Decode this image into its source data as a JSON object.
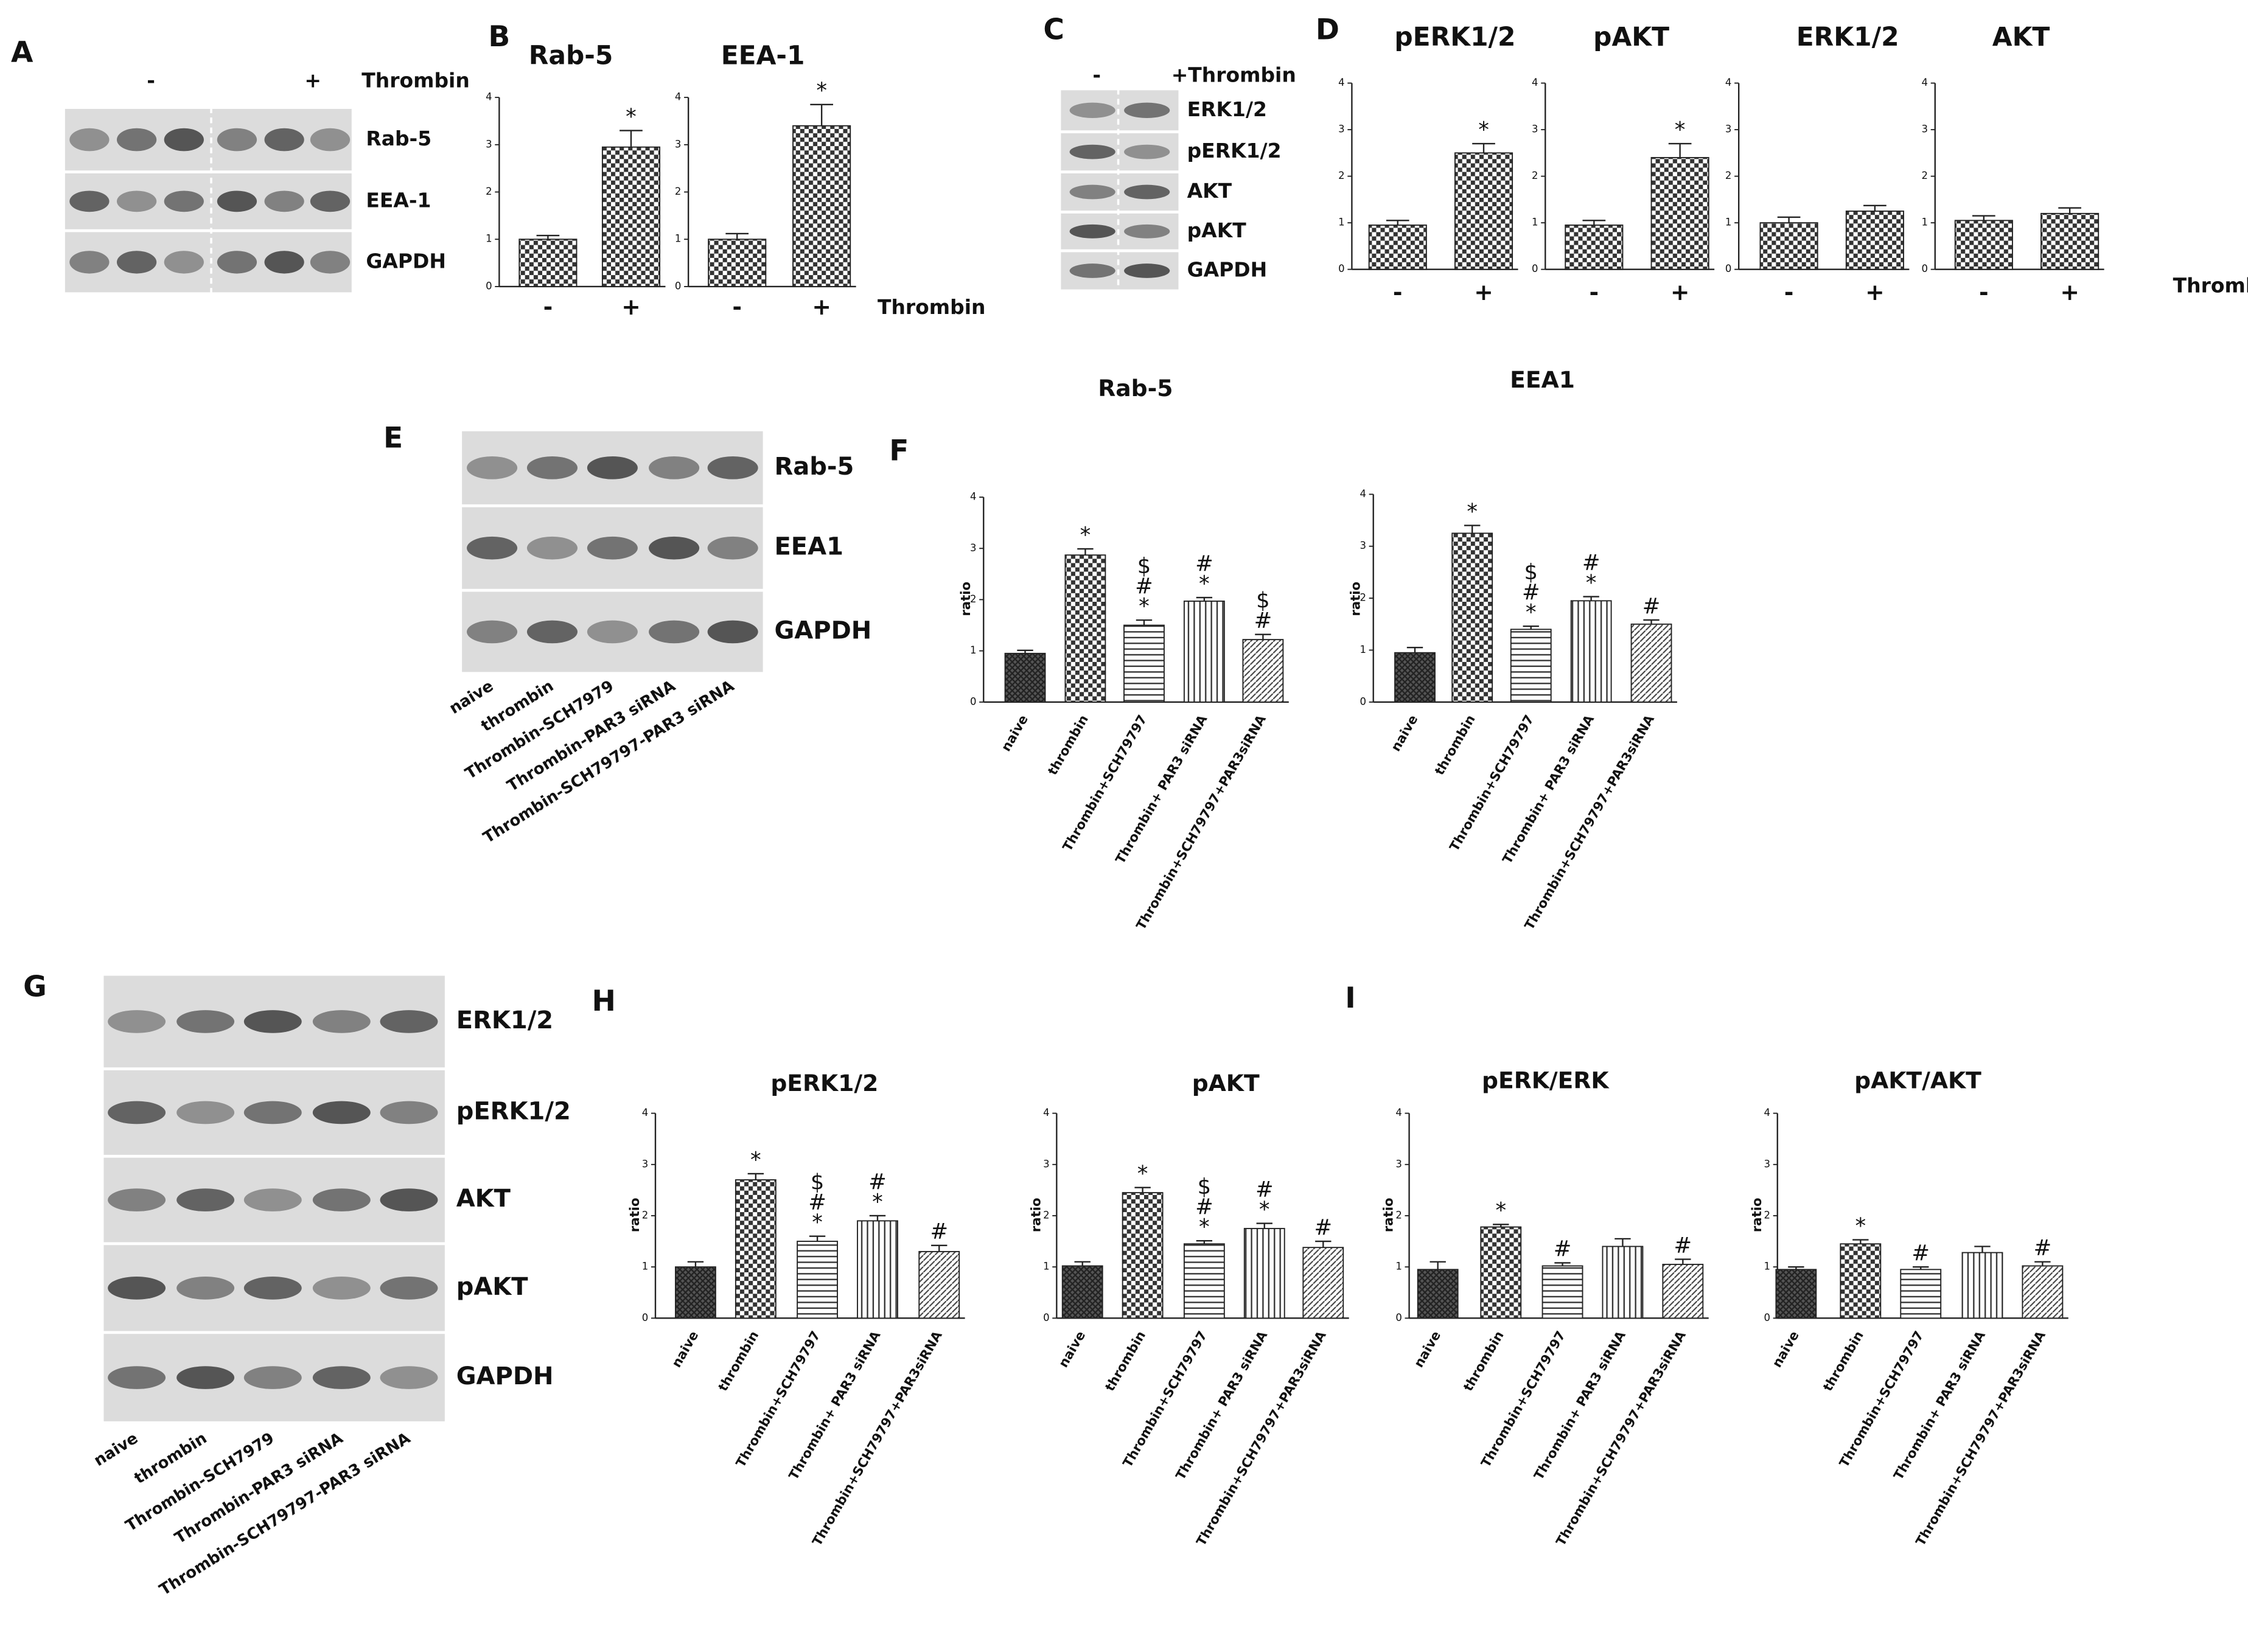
{
  "letters": [
    "B",
    "D",
    "F",
    "H",
    "I"
  ],
  "blots": [
    {
      "letter": "A",
      "header": [
        "-",
        "+",
        "Thrombin"
      ],
      "rows": [
        "Rab-5",
        "EEA-1",
        "GAPDH"
      ]
    },
    {
      "letter": "C",
      "header": [
        "-",
        "+Thrombin"
      ],
      "rows": [
        "ERK1/2",
        "pERK1/2",
        "AKT",
        "pAKT",
        "GAPDH"
      ]
    },
    {
      "letter": "E",
      "rows": [
        "Rab-5",
        "EEA1",
        "GAPDH"
      ],
      "lanes": [
        "naive",
        "thrombin",
        "Thrombin-SCH7979",
        "Thrombin-PAR3 siRNA",
        "Thrombin-SCH79797-PAR3 siRNA"
      ]
    },
    {
      "letter": "G",
      "rows": [
        "ERK1/2",
        "pERK1/2",
        "AKT",
        "pAKT",
        "GAPDH"
      ],
      "lanes": [
        "naive",
        "thrombin",
        "Thrombin-SCH7979",
        "Thrombin-PAR3 siRNA",
        "Thrombin-SCH79797-PAR3 siRNA"
      ]
    }
  ],
  "chart_data": [
    {
      "type": "bar",
      "title": "Rab-5",
      "categories": [
        "-",
        "+"
      ],
      "values": [
        1.0,
        2.95
      ],
      "errors": [
        0.08,
        0.35
      ],
      "annotations": [
        null,
        [
          "*"
        ]
      ],
      "bar_patterns": [
        "checker",
        "checker"
      ],
      "ylim": [
        0,
        4
      ],
      "yticks": [
        0,
        1,
        2,
        3,
        4
      ]
    },
    {
      "type": "bar",
      "title": "EEA-1",
      "categories": [
        "-",
        "+"
      ],
      "values": [
        1.0,
        3.4
      ],
      "errors": [
        0.12,
        0.45
      ],
      "annotations": [
        null,
        [
          "*"
        ]
      ],
      "bar_patterns": [
        "checker",
        "checker"
      ],
      "ylim": [
        0,
        4
      ],
      "yticks": [
        0,
        1,
        2,
        3,
        4
      ],
      "xlabel": "Thrombin"
    },
    {
      "type": "bar",
      "title": "pERK1/2",
      "categories": [
        "-",
        "+"
      ],
      "values": [
        0.95,
        2.5
      ],
      "errors": [
        0.1,
        0.2
      ],
      "annotations": [
        null,
        [
          "*"
        ]
      ],
      "bar_patterns": [
        "checker",
        "checker"
      ],
      "ylim": [
        0,
        4
      ],
      "yticks": [
        0,
        1,
        2,
        3,
        4
      ]
    },
    {
      "type": "bar",
      "title": "pAKT",
      "categories": [
        "-",
        "+"
      ],
      "values": [
        0.95,
        2.4
      ],
      "errors": [
        0.1,
        0.3
      ],
      "annotations": [
        null,
        [
          "*"
        ]
      ],
      "bar_patterns": [
        "checker",
        "checker"
      ],
      "ylim": [
        0,
        4
      ],
      "yticks": [
        0,
        1,
        2,
        3,
        4
      ]
    },
    {
      "type": "bar",
      "title": "ERK1/2",
      "categories": [
        "-",
        "+"
      ],
      "values": [
        1.0,
        1.25
      ],
      "errors": [
        0.12,
        0.12
      ],
      "annotations": [
        null,
        null
      ],
      "bar_patterns": [
        "checker",
        "checker"
      ],
      "ylim": [
        0,
        4
      ],
      "yticks": [
        0,
        1,
        2,
        3,
        4
      ]
    },
    {
      "type": "bar",
      "title": "AKT",
      "categories": [
        "-",
        "+"
      ],
      "values": [
        1.05,
        1.2
      ],
      "errors": [
        0.1,
        0.12
      ],
      "annotations": [
        null,
        null
      ],
      "bar_patterns": [
        "checker",
        "checker"
      ],
      "ylim": [
        0,
        4
      ],
      "yticks": [
        0,
        1,
        2,
        3,
        4
      ],
      "xlabel": "Thrombin"
    },
    {
      "type": "bar",
      "title": "Rab-5",
      "ylabel": "ratio",
      "categories": [
        "naive",
        "thrombin",
        "Thrombin+SCH79797",
        "Thrombin+ PAR3 siRNA",
        "Thrombin+SCH79797+PAR3siRNA"
      ],
      "values": [
        0.95,
        2.87,
        1.5,
        1.97,
        1.22
      ],
      "errors": [
        0.06,
        0.12,
        0.1,
        0.07,
        0.1
      ],
      "annotations": [
        null,
        [
          "*"
        ],
        [
          "$",
          "#",
          "*"
        ],
        [
          "#",
          "*"
        ],
        [
          "$",
          "#"
        ]
      ],
      "bar_patterns": [
        "crosshatch",
        "checker",
        "hlines",
        "vlines",
        "diag"
      ],
      "ylim": [
        0,
        4
      ],
      "yticks": [
        0,
        1,
        2,
        3,
        4
      ]
    },
    {
      "type": "bar",
      "title": "EEA1",
      "ylabel": "ratio",
      "categories": [
        "naive",
        "thrombin",
        "Thrombin+SCH79797",
        "Thrombin+ PAR3 siRNA",
        "Thrombin+SCH79797+PAR3siRNA"
      ],
      "values": [
        0.95,
        3.25,
        1.4,
        1.95,
        1.5
      ],
      "errors": [
        0.1,
        0.15,
        0.06,
        0.08,
        0.08
      ],
      "annotations": [
        null,
        [
          "*"
        ],
        [
          "$",
          "#",
          "*"
        ],
        [
          "#",
          "*"
        ],
        [
          "#"
        ]
      ],
      "bar_patterns": [
        "crosshatch",
        "checker",
        "hlines",
        "vlines",
        "diag"
      ],
      "ylim": [
        0,
        4
      ],
      "yticks": [
        0,
        1,
        2,
        3,
        4
      ]
    },
    {
      "type": "bar",
      "title": "pERK1/2",
      "ylabel": "ratio",
      "categories": [
        "naive",
        "thrombin",
        "Thrombin+SCH79797",
        "Thrombin+ PAR3 siRNA",
        "Thrombin+SCH79797+PAR3siRNA"
      ],
      "values": [
        1.0,
        2.7,
        1.5,
        1.9,
        1.3
      ],
      "errors": [
        0.1,
        0.12,
        0.1,
        0.1,
        0.12
      ],
      "annotations": [
        null,
        [
          "*"
        ],
        [
          "$",
          "#",
          "*"
        ],
        [
          "#",
          "*"
        ],
        [
          "#"
        ]
      ],
      "bar_patterns": [
        "crosshatch",
        "checker",
        "hlines",
        "vlines",
        "diag"
      ],
      "ylim": [
        0,
        4
      ],
      "yticks": [
        0,
        1,
        2,
        3,
        4
      ]
    },
    {
      "type": "bar",
      "title": "pAKT",
      "ylabel": "ratio",
      "categories": [
        "naive",
        "thrombin",
        "Thrombin+SCH79797",
        "Thrombin+ PAR3 siRNA",
        "Thrombin+SCH79797+PAR3siRNA"
      ],
      "values": [
        1.02,
        2.45,
        1.45,
        1.75,
        1.38
      ],
      "errors": [
        0.08,
        0.1,
        0.06,
        0.1,
        0.12
      ],
      "annotations": [
        null,
        [
          "*"
        ],
        [
          "$",
          "#",
          "*"
        ],
        [
          "#",
          "*"
        ],
        [
          "#"
        ]
      ],
      "bar_patterns": [
        "crosshatch",
        "checker",
        "hlines",
        "vlines",
        "diag"
      ],
      "ylim": [
        0,
        4
      ],
      "yticks": [
        0,
        1,
        2,
        3,
        4
      ]
    },
    {
      "type": "bar",
      "title": "pERK/ERK",
      "ylabel": "ratio",
      "categories": [
        "naive",
        "thrombin",
        "Thrombin+SCH79797",
        "Thrombin+ PAR3 siRNA",
        "Thrombin+SCH79797+PAR3siRNA"
      ],
      "values": [
        0.95,
        1.78,
        1.02,
        1.4,
        1.05
      ],
      "errors": [
        0.15,
        0.05,
        0.06,
        0.15,
        0.1
      ],
      "annotations": [
        null,
        [
          "*"
        ],
        [
          "#"
        ],
        null,
        [
          "#"
        ]
      ],
      "bar_patterns": [
        "crosshatch",
        "checker",
        "hlines",
        "vlines",
        "diag"
      ],
      "ylim": [
        0,
        4
      ],
      "yticks": [
        0,
        1,
        2,
        3,
        4
      ]
    },
    {
      "type": "bar",
      "title": "pAKT/AKT",
      "ylabel": "ratio",
      "categories": [
        "naive",
        "thrombin",
        "Thrombin+SCH79797",
        "Thrombin+ PAR3 siRNA",
        "Thrombin+SCH79797+PAR3siRNA"
      ],
      "values": [
        0.95,
        1.45,
        0.95,
        1.28,
        1.02
      ],
      "errors": [
        0.05,
        0.08,
        0.05,
        0.12,
        0.08
      ],
      "annotations": [
        null,
        [
          "*"
        ],
        [
          "#"
        ],
        null,
        [
          "#"
        ]
      ],
      "bar_patterns": [
        "crosshatch",
        "checker",
        "hlines",
        "vlines",
        "diag"
      ],
      "ylim": [
        0,
        4
      ],
      "yticks": [
        0,
        1,
        2,
        3,
        4
      ]
    }
  ]
}
